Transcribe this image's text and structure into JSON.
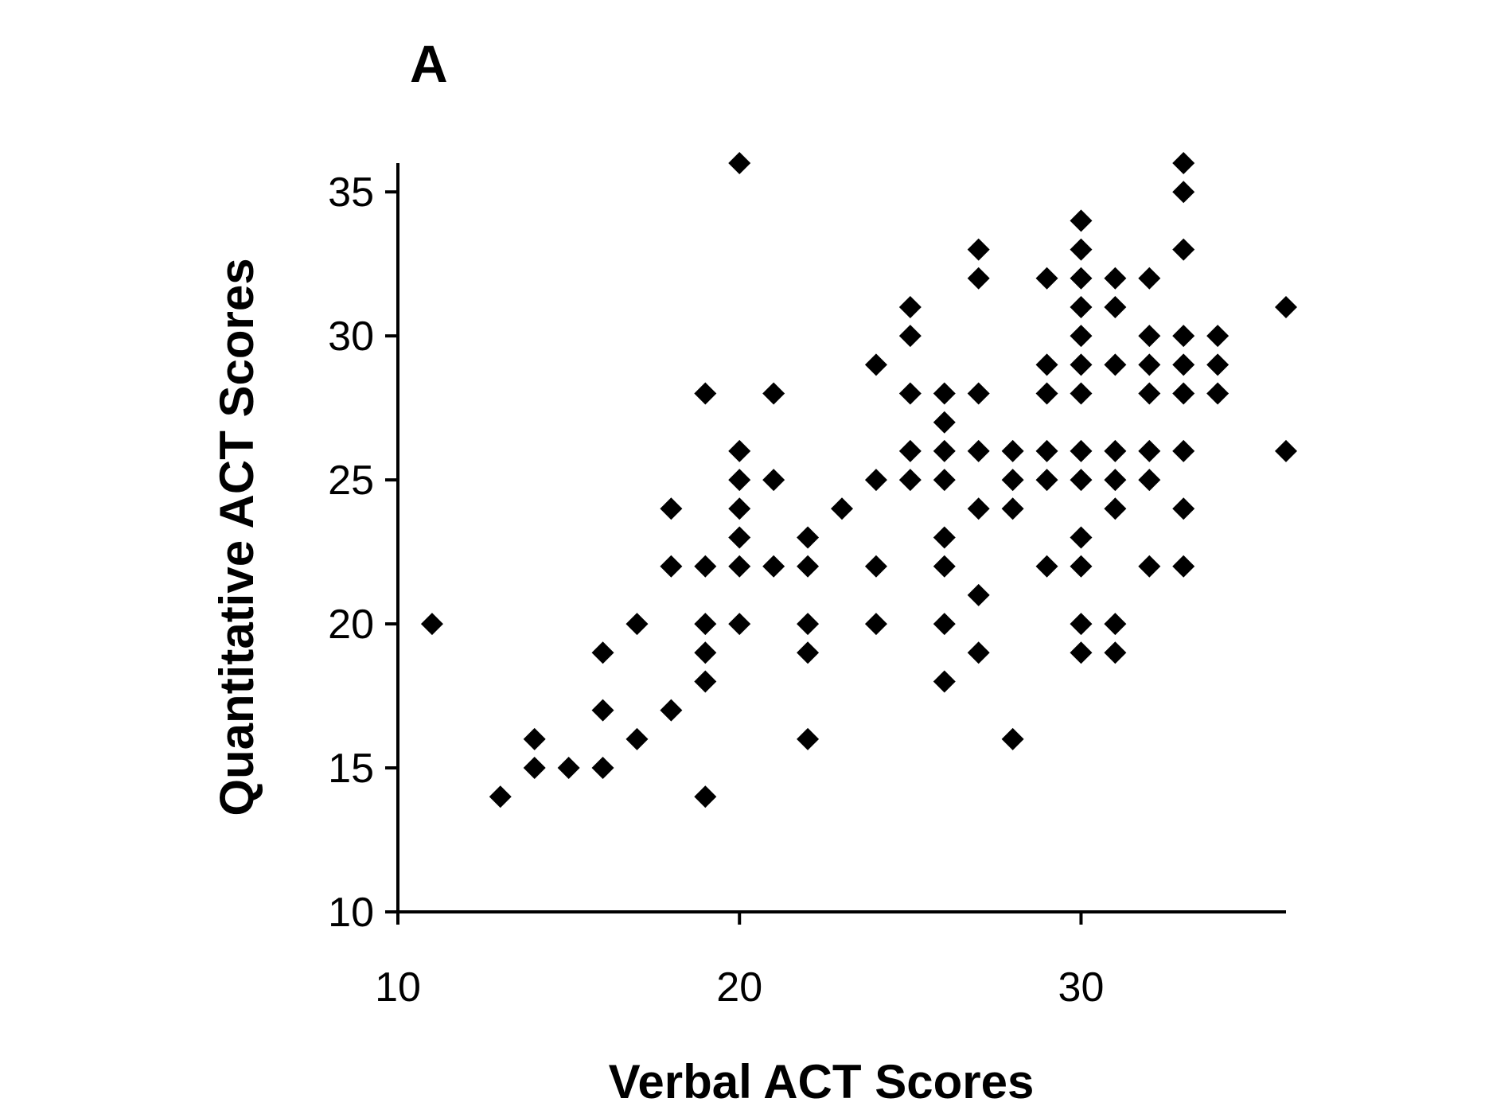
{
  "chart_data": {
    "type": "scatter",
    "panel_label": "A",
    "xlabel": "Verbal ACT Scores",
    "ylabel": "Quantitative ACT Scores",
    "xlim": [
      10,
      36
    ],
    "ylim": [
      10,
      36
    ],
    "xticks": [
      10,
      20,
      30
    ],
    "yticks": [
      10,
      15,
      20,
      25,
      30,
      35
    ],
    "grid": false,
    "marker": "diamond",
    "marker_color": "#000000",
    "series": [
      {
        "points": [
          [
            11,
            20
          ],
          [
            13,
            14
          ],
          [
            14,
            16
          ],
          [
            14,
            15
          ],
          [
            15,
            15
          ],
          [
            16,
            19
          ],
          [
            16,
            17
          ],
          [
            16,
            15
          ],
          [
            17,
            20
          ],
          [
            17,
            16
          ],
          [
            18,
            24
          ],
          [
            18,
            22
          ],
          [
            18,
            17
          ],
          [
            19,
            28
          ],
          [
            19,
            22
          ],
          [
            19,
            20
          ],
          [
            19,
            19
          ],
          [
            19,
            18
          ],
          [
            19,
            14
          ],
          [
            20,
            36
          ],
          [
            20,
            26
          ],
          [
            20,
            25
          ],
          [
            20,
            24
          ],
          [
            20,
            23
          ],
          [
            20,
            22
          ],
          [
            20,
            20
          ],
          [
            21,
            28
          ],
          [
            21,
            25
          ],
          [
            21,
            22
          ],
          [
            22,
            23
          ],
          [
            22,
            22
          ],
          [
            22,
            20
          ],
          [
            22,
            19
          ],
          [
            22,
            16
          ],
          [
            23,
            24
          ],
          [
            24,
            29
          ],
          [
            24,
            25
          ],
          [
            24,
            22
          ],
          [
            24,
            20
          ],
          [
            25,
            31
          ],
          [
            25,
            30
          ],
          [
            25,
            28
          ],
          [
            25,
            26
          ],
          [
            25,
            25
          ],
          [
            26,
            28
          ],
          [
            26,
            27
          ],
          [
            26,
            26
          ],
          [
            26,
            25
          ],
          [
            26,
            23
          ],
          [
            26,
            22
          ],
          [
            26,
            20
          ],
          [
            26,
            18
          ],
          [
            27,
            33
          ],
          [
            27,
            32
          ],
          [
            27,
            28
          ],
          [
            27,
            26
          ],
          [
            27,
            24
          ],
          [
            27,
            21
          ],
          [
            27,
            19
          ],
          [
            28,
            26
          ],
          [
            28,
            25
          ],
          [
            28,
            24
          ],
          [
            28,
            16
          ],
          [
            29,
            32
          ],
          [
            29,
            29
          ],
          [
            29,
            28
          ],
          [
            29,
            26
          ],
          [
            29,
            25
          ],
          [
            29,
            22
          ],
          [
            30,
            34
          ],
          [
            30,
            33
          ],
          [
            30,
            32
          ],
          [
            30,
            31
          ],
          [
            30,
            30
          ],
          [
            30,
            29
          ],
          [
            30,
            28
          ],
          [
            30,
            26
          ],
          [
            30,
            25
          ],
          [
            30,
            23
          ],
          [
            30,
            22
          ],
          [
            30,
            20
          ],
          [
            30,
            19
          ],
          [
            31,
            32
          ],
          [
            31,
            31
          ],
          [
            31,
            29
          ],
          [
            31,
            26
          ],
          [
            31,
            25
          ],
          [
            31,
            24
          ],
          [
            31,
            20
          ],
          [
            31,
            19
          ],
          [
            32,
            32
          ],
          [
            32,
            30
          ],
          [
            32,
            29
          ],
          [
            32,
            28
          ],
          [
            32,
            26
          ],
          [
            32,
            25
          ],
          [
            32,
            22
          ],
          [
            33,
            36
          ],
          [
            33,
            35
          ],
          [
            33,
            33
          ],
          [
            33,
            30
          ],
          [
            33,
            29
          ],
          [
            33,
            28
          ],
          [
            33,
            26
          ],
          [
            33,
            24
          ],
          [
            33,
            22
          ],
          [
            34,
            30
          ],
          [
            34,
            29
          ],
          [
            34,
            28
          ],
          [
            36,
            31
          ],
          [
            36,
            26
          ]
        ]
      }
    ]
  }
}
